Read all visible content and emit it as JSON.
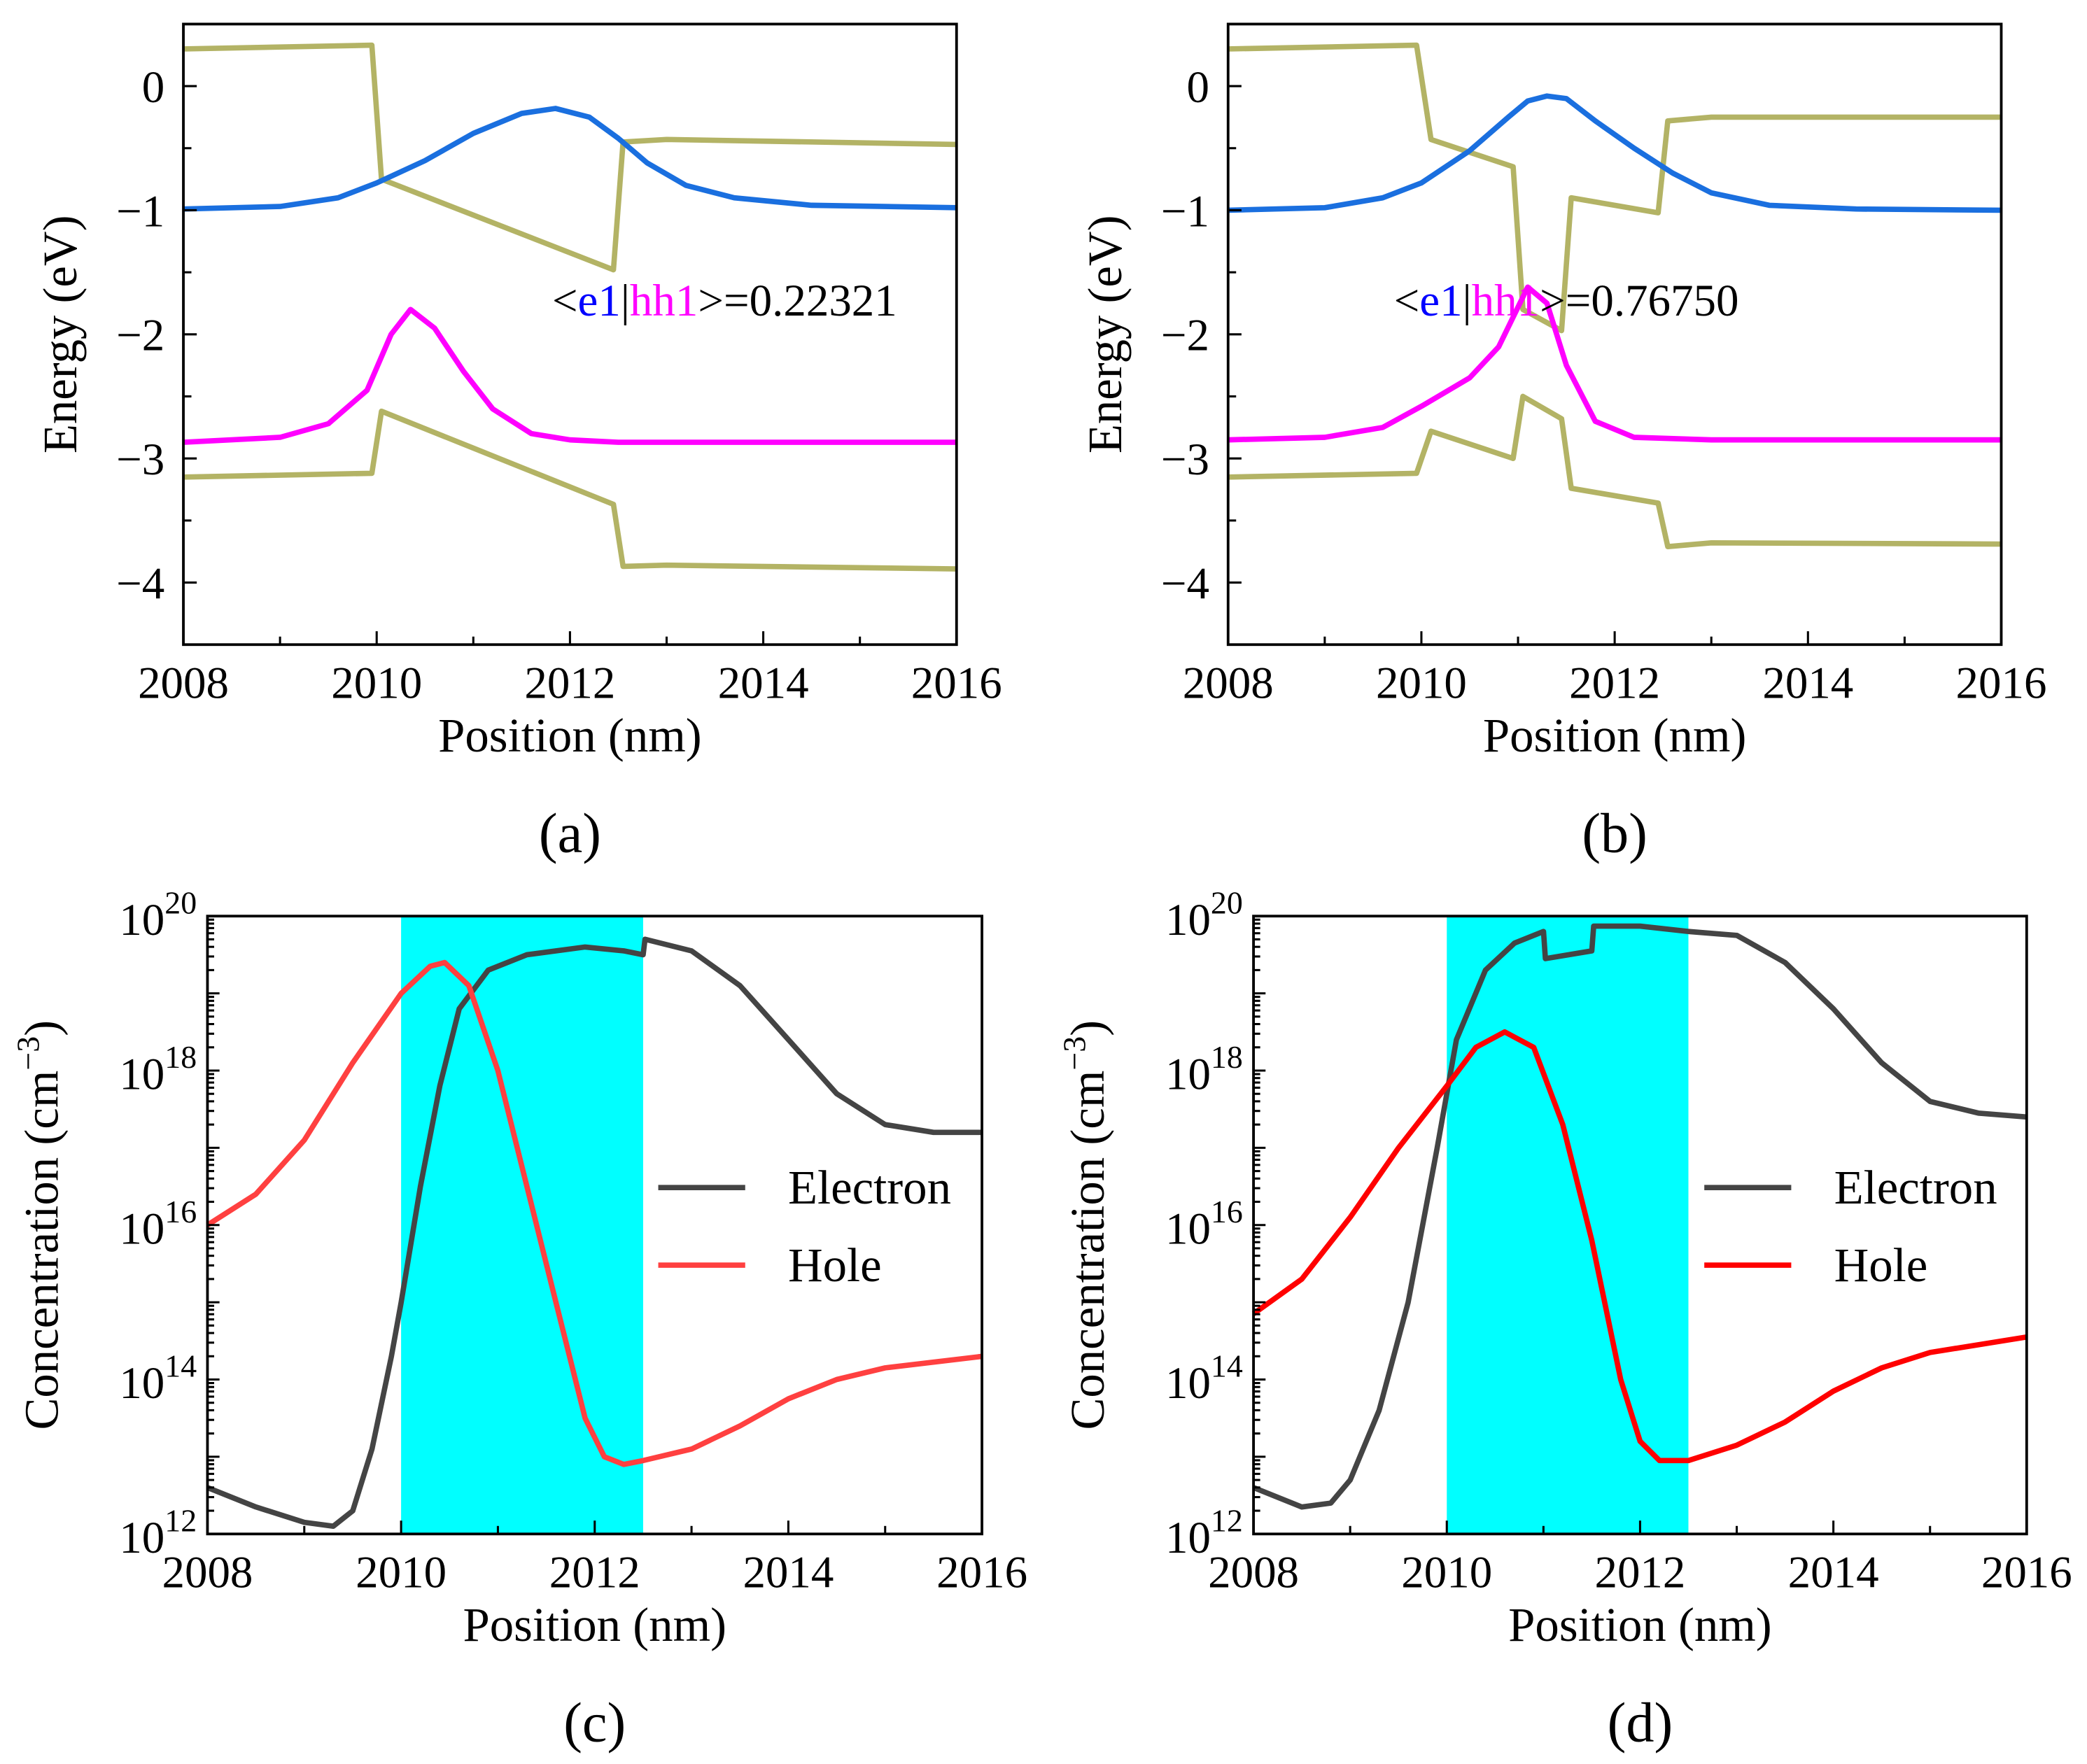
{
  "colors": {
    "band": "#b3b365",
    "e1": "#1a6fdf",
    "hh1": "#ff00ff",
    "electron": "#444444",
    "hole_c": "#ff4040",
    "hole_d": "#ff0000",
    "well": "#00ffff"
  },
  "chart_data": [
    {
      "id": "a",
      "caption": "(a)",
      "type": "line",
      "xlabel": "Position (nm)",
      "ylabel": "Energy (eV)",
      "xlim": [
        2008,
        2016
      ],
      "ylim": [
        -4.5,
        0.5
      ],
      "xticks": [
        2008,
        2010,
        2012,
        2014,
        2016
      ],
      "yticks": [
        0,
        -1,
        -2,
        -3,
        -4
      ],
      "annotation": {
        "parts": [
          "<",
          "e1",
          "|",
          "hh1",
          ">=0.22321"
        ],
        "x": 2013.6,
        "y": -1.85
      },
      "series": [
        {
          "name": "Conduction band",
          "color": "band",
          "points": [
            [
              2008,
              0.3
            ],
            [
              2009.95,
              0.33
            ],
            [
              2010.05,
              -0.75
            ],
            [
              2012.45,
              -1.48
            ],
            [
              2012.55,
              -0.45
            ],
            [
              2013,
              -0.43
            ],
            [
              2016,
              -0.47
            ]
          ]
        },
        {
          "name": "Valence band",
          "color": "band",
          "points": [
            [
              2008,
              -3.15
            ],
            [
              2009.95,
              -3.12
            ],
            [
              2010.05,
              -2.62
            ],
            [
              2012.45,
              -3.37
            ],
            [
              2012.55,
              -3.87
            ],
            [
              2013,
              -3.86
            ],
            [
              2016,
              -3.89
            ]
          ]
        },
        {
          "name": "e1",
          "color": "e1",
          "points": [
            [
              2008,
              -0.99
            ],
            [
              2009,
              -0.97
            ],
            [
              2009.6,
              -0.9
            ],
            [
              2010,
              -0.78
            ],
            [
              2010.5,
              -0.6
            ],
            [
              2011,
              -0.38
            ],
            [
              2011.5,
              -0.22
            ],
            [
              2011.85,
              -0.18
            ],
            [
              2012.2,
              -0.25
            ],
            [
              2012.5,
              -0.42
            ],
            [
              2012.8,
              -0.62
            ],
            [
              2013.2,
              -0.8
            ],
            [
              2013.7,
              -0.9
            ],
            [
              2014.5,
              -0.96
            ],
            [
              2016,
              -0.98
            ]
          ]
        },
        {
          "name": "hh1",
          "color": "hh1",
          "points": [
            [
              2008,
              -2.87
            ],
            [
              2009,
              -2.83
            ],
            [
              2009.5,
              -2.72
            ],
            [
              2009.9,
              -2.45
            ],
            [
              2010.15,
              -2.0
            ],
            [
              2010.35,
              -1.8
            ],
            [
              2010.6,
              -1.95
            ],
            [
              2010.9,
              -2.3
            ],
            [
              2011.2,
              -2.6
            ],
            [
              2011.6,
              -2.8
            ],
            [
              2012,
              -2.85
            ],
            [
              2012.5,
              -2.87
            ],
            [
              2016,
              -2.87
            ]
          ]
        }
      ]
    },
    {
      "id": "b",
      "caption": "(b)",
      "type": "line",
      "xlabel": "Position (nm)",
      "ylabel": "Energy (eV)",
      "xlim": [
        2008,
        2016
      ],
      "ylim": [
        -4.5,
        0.5
      ],
      "xticks": [
        2008,
        2010,
        2012,
        2014,
        2016
      ],
      "yticks": [
        0,
        -1,
        -2,
        -3,
        -4
      ],
      "annotation": {
        "parts": [
          "<",
          "e1",
          "|",
          "hh1",
          ">=0.76750"
        ],
        "x": 2011.5,
        "y": -1.85
      },
      "series": [
        {
          "name": "Conduction band",
          "color": "band",
          "points": [
            [
              2008,
              0.3
            ],
            [
              2009.95,
              0.33
            ],
            [
              2010.1,
              -0.43
            ],
            [
              2010.95,
              -0.65
            ],
            [
              2011.05,
              -1.8
            ],
            [
              2011.45,
              -1.97
            ],
            [
              2011.55,
              -0.9
            ],
            [
              2012.45,
              -1.02
            ],
            [
              2012.55,
              -0.28
            ],
            [
              2013,
              -0.25
            ],
            [
              2016,
              -0.25
            ]
          ]
        },
        {
          "name": "Valence band",
          "color": "band",
          "points": [
            [
              2008,
              -3.15
            ],
            [
              2009.95,
              -3.12
            ],
            [
              2010.1,
              -2.78
            ],
            [
              2010.95,
              -3.0
            ],
            [
              2011.05,
              -2.5
            ],
            [
              2011.45,
              -2.68
            ],
            [
              2011.55,
              -3.24
            ],
            [
              2012.45,
              -3.36
            ],
            [
              2012.55,
              -3.71
            ],
            [
              2013,
              -3.68
            ],
            [
              2016,
              -3.69
            ]
          ]
        },
        {
          "name": "e1",
          "color": "e1",
          "points": [
            [
              2008,
              -1.0
            ],
            [
              2009,
              -0.98
            ],
            [
              2009.6,
              -0.9
            ],
            [
              2010,
              -0.78
            ],
            [
              2010.5,
              -0.52
            ],
            [
              2010.9,
              -0.25
            ],
            [
              2011.1,
              -0.12
            ],
            [
              2011.3,
              -0.08
            ],
            [
              2011.5,
              -0.1
            ],
            [
              2011.8,
              -0.28
            ],
            [
              2012.2,
              -0.5
            ],
            [
              2012.6,
              -0.7
            ],
            [
              2013,
              -0.86
            ],
            [
              2013.6,
              -0.96
            ],
            [
              2014.5,
              -0.99
            ],
            [
              2016,
              -1.0
            ]
          ]
        },
        {
          "name": "hh1",
          "color": "hh1",
          "points": [
            [
              2008,
              -2.85
            ],
            [
              2009,
              -2.83
            ],
            [
              2009.6,
              -2.75
            ],
            [
              2010,
              -2.58
            ],
            [
              2010.5,
              -2.35
            ],
            [
              2010.8,
              -2.1
            ],
            [
              2011.1,
              -1.62
            ],
            [
              2011.3,
              -1.75
            ],
            [
              2011.5,
              -2.25
            ],
            [
              2011.8,
              -2.7
            ],
            [
              2012.2,
              -2.83
            ],
            [
              2013,
              -2.85
            ],
            [
              2016,
              -2.85
            ]
          ]
        }
      ]
    },
    {
      "id": "c",
      "caption": "(c)",
      "type": "line",
      "yscale": "log",
      "xlabel": "Position (nm)",
      "ylabel": "Concentration (cm",
      "ylabel_sup": "−3",
      "ylabel_end": ")",
      "xlim": [
        2008,
        2016
      ],
      "ylim_log10": [
        12,
        20
      ],
      "xticks": [
        2008,
        2010,
        2012,
        2014,
        2016
      ],
      "yticks_log10": [
        12,
        14,
        16,
        18,
        20
      ],
      "ytick_base": "10",
      "shaded_region": [
        2010,
        2012.5
      ],
      "legend": {
        "position": "right",
        "entries": [
          {
            "label": "Electron",
            "color": "electron"
          },
          {
            "label": "Hole",
            "color": "hole_c"
          }
        ]
      },
      "series": [
        {
          "name": "Electron",
          "color": "electron",
          "log10_points": [
            [
              2008,
              12.6
            ],
            [
              2008.5,
              12.35
            ],
            [
              2009,
              12.15
            ],
            [
              2009.3,
              12.1
            ],
            [
              2009.5,
              12.3
            ],
            [
              2009.7,
              13.1
            ],
            [
              2009.9,
              14.3
            ],
            [
              2010,
              15.0
            ],
            [
              2010.2,
              16.5
            ],
            [
              2010.4,
              17.8
            ],
            [
              2010.6,
              18.8
            ],
            [
              2010.9,
              19.3
            ],
            [
              2011.3,
              19.5
            ],
            [
              2011.9,
              19.6
            ],
            [
              2012.3,
              19.55
            ],
            [
              2012.5,
              19.5
            ],
            [
              2012.52,
              19.7
            ],
            [
              2013,
              19.55
            ],
            [
              2013.5,
              19.1
            ],
            [
              2014,
              18.4
            ],
            [
              2014.5,
              17.7
            ],
            [
              2015,
              17.3
            ],
            [
              2015.5,
              17.2
            ],
            [
              2016,
              17.2
            ]
          ]
        },
        {
          "name": "Hole",
          "color": "hole_c",
          "log10_points": [
            [
              2008,
              16.0
            ],
            [
              2008.5,
              16.4
            ],
            [
              2009,
              17.1
            ],
            [
              2009.5,
              18.1
            ],
            [
              2010,
              19.0
            ],
            [
              2010.3,
              19.35
            ],
            [
              2010.45,
              19.4
            ],
            [
              2010.7,
              19.1
            ],
            [
              2011,
              18.0
            ],
            [
              2011.3,
              16.5
            ],
            [
              2011.6,
              15.0
            ],
            [
              2011.9,
              13.5
            ],
            [
              2012.1,
              13.0
            ],
            [
              2012.3,
              12.9
            ],
            [
              2012.5,
              12.95
            ],
            [
              2013,
              13.1
            ],
            [
              2013.5,
              13.4
            ],
            [
              2014,
              13.75
            ],
            [
              2014.5,
              14.0
            ],
            [
              2015,
              14.15
            ],
            [
              2016,
              14.3
            ]
          ]
        }
      ]
    },
    {
      "id": "d",
      "caption": "(d)",
      "type": "line",
      "yscale": "log",
      "xlabel": "Position (nm)",
      "ylabel": "Concentration (cm",
      "ylabel_sup": "−3",
      "ylabel_end": ")",
      "xlim": [
        2008,
        2016
      ],
      "ylim_log10": [
        12,
        20
      ],
      "xticks": [
        2008,
        2010,
        2012,
        2014,
        2016
      ],
      "yticks_log10": [
        12,
        14,
        16,
        18,
        20
      ],
      "ytick_base": "10",
      "shaded_region": [
        2010,
        2012.5
      ],
      "legend": {
        "position": "right",
        "entries": [
          {
            "label": "Electron",
            "color": "electron"
          },
          {
            "label": "Hole",
            "color": "hole_d"
          }
        ]
      },
      "series": [
        {
          "name": "Electron",
          "color": "electron",
          "log10_points": [
            [
              2008,
              12.6
            ],
            [
              2008.5,
              12.35
            ],
            [
              2008.8,
              12.4
            ],
            [
              2009,
              12.7
            ],
            [
              2009.3,
              13.6
            ],
            [
              2009.6,
              15.0
            ],
            [
              2009.9,
              17.0
            ],
            [
              2010.1,
              18.4
            ],
            [
              2010.4,
              19.3
            ],
            [
              2010.7,
              19.65
            ],
            [
              2011,
              19.8
            ],
            [
              2011.02,
              19.45
            ],
            [
              2011.5,
              19.55
            ],
            [
              2011.52,
              19.87
            ],
            [
              2012,
              19.87
            ],
            [
              2012.5,
              19.8
            ],
            [
              2013,
              19.75
            ],
            [
              2013.5,
              19.4
            ],
            [
              2014,
              18.8
            ],
            [
              2014.5,
              18.1
            ],
            [
              2015,
              17.6
            ],
            [
              2015.5,
              17.45
            ],
            [
              2016,
              17.4
            ]
          ]
        },
        {
          "name": "Hole",
          "color": "hole_d",
          "log10_points": [
            [
              2008,
              14.85
            ],
            [
              2008.5,
              15.3
            ],
            [
              2009,
              16.1
            ],
            [
              2009.5,
              17.0
            ],
            [
              2010,
              17.8
            ],
            [
              2010.3,
              18.3
            ],
            [
              2010.6,
              18.5
            ],
            [
              2010.9,
              18.3
            ],
            [
              2011.2,
              17.3
            ],
            [
              2011.5,
              15.8
            ],
            [
              2011.8,
              14.0
            ],
            [
              2012,
              13.2
            ],
            [
              2012.2,
              12.95
            ],
            [
              2012.5,
              12.95
            ],
            [
              2013,
              13.15
            ],
            [
              2013.5,
              13.45
            ],
            [
              2014,
              13.85
            ],
            [
              2014.5,
              14.15
            ],
            [
              2015,
              14.35
            ],
            [
              2016,
              14.55
            ]
          ]
        }
      ]
    }
  ]
}
